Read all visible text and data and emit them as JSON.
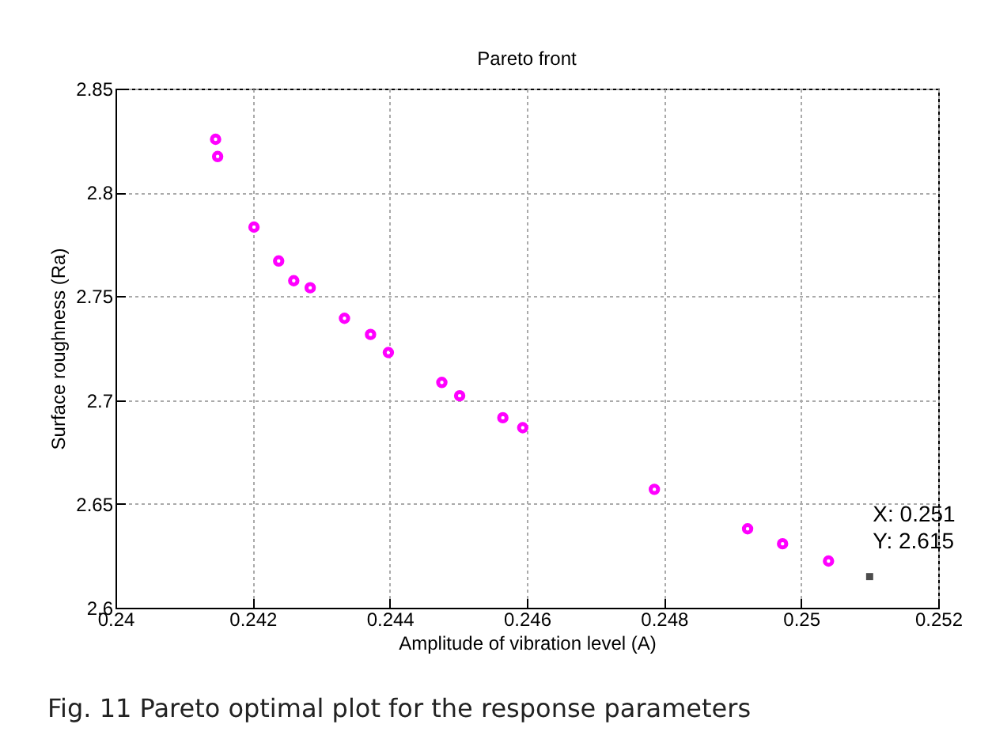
{
  "chart_data": {
    "type": "scatter",
    "title": "Pareto front",
    "xlabel": "Amplitude of vibration level (A)",
    "ylabel": "Surface roughness (Ra)",
    "x": [
      0.24146,
      0.24149,
      0.24202,
      0.24238,
      0.2426,
      0.24284,
      0.24334,
      0.24372,
      0.24398,
      0.24476,
      0.24502,
      0.24565,
      0.24594,
      0.24786,
      0.24922,
      0.24973,
      0.2504
    ],
    "series": [
      {
        "color": "#ff00ff",
        "values": [
          2.8256,
          2.8173,
          2.7833,
          2.767,
          2.7575,
          2.7541,
          2.7394,
          2.7316,
          2.7229,
          2.7085,
          2.7021,
          2.6915,
          2.6867,
          2.657,
          2.638,
          2.6308,
          2.6225
        ]
      }
    ],
    "xlim": [
      0.24,
      0.252
    ],
    "xticks": [
      0.24,
      0.242,
      0.244,
      0.246,
      0.248,
      0.25,
      0.252
    ],
    "ylim": [
      2.6,
      2.85
    ],
    "yticks": [
      2.6,
      2.65,
      2.7,
      2.75,
      2.8,
      2.85
    ],
    "grid": true,
    "marker": "circle",
    "annotations": [
      {
        "text": "X: 0.251\nY: 2.615",
        "x": 0.251,
        "y": 2.615
      },
      "Fig. 11 Pareto optimal plot for the response parameters"
    ]
  }
}
